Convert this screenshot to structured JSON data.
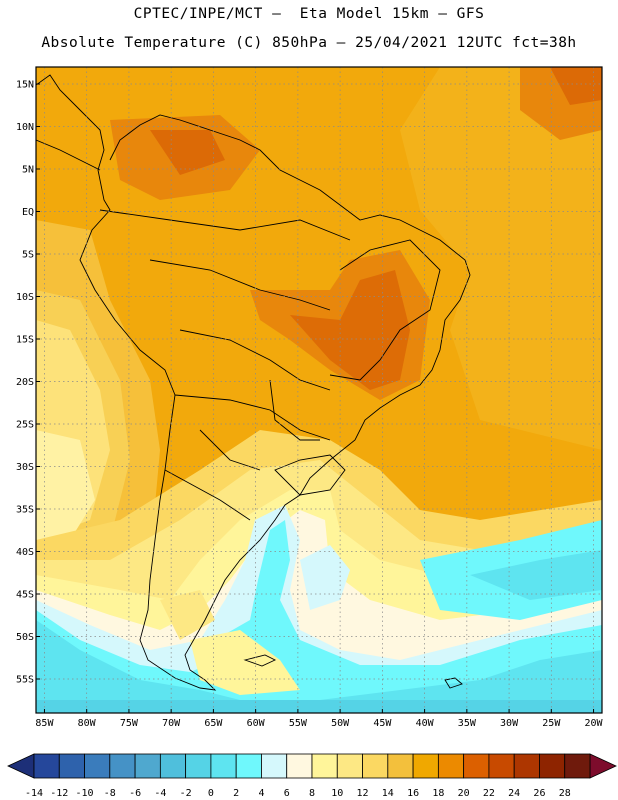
{
  "header": {
    "line1": "CPTEC/INPE/MCT –  Eta Model 15km – GFS",
    "line2": "Absolute Temperature (C) 850hPa – 25/04/2021 12UTC fct=38h"
  },
  "map": {
    "variable": "Absolute Temperature (C) 850hPa",
    "lon_range": [
      -86,
      -19
    ],
    "lat_range": [
      -59,
      17
    ],
    "lat_ticks": [
      "15N",
      "10N",
      "5N",
      "EQ",
      "5S",
      "10S",
      "15S",
      "20S",
      "25S",
      "30S",
      "35S",
      "40S",
      "45S",
      "50S",
      "55S"
    ],
    "lat_values": [
      15,
      10,
      5,
      0,
      -5,
      -10,
      -15,
      -20,
      -25,
      -30,
      -35,
      -40,
      -45,
      -50,
      -55
    ],
    "lon_ticks": [
      "85W",
      "80W",
      "75W",
      "70W",
      "65W",
      "60W",
      "55W",
      "50W",
      "45W",
      "40W",
      "35W",
      "30W",
      "25W",
      "20W"
    ],
    "lon_values": [
      -85,
      -80,
      -75,
      -70,
      -65,
      -60,
      -55,
      -50,
      -45,
      -40,
      -35,
      -30,
      -25,
      -20
    ]
  },
  "colorbar": {
    "labels": [
      "-14",
      "-12",
      "-10",
      "-8",
      "-6",
      "-4",
      "-2",
      "0",
      "2",
      "4",
      "6",
      "8",
      "10",
      "12",
      "14",
      "16",
      "18",
      "20",
      "22",
      "24",
      "26",
      "28"
    ],
    "colors": [
      "#25479b",
      "#2e62ac",
      "#3a7cbc",
      "#4592c6",
      "#4fa8cf",
      "#4fbfdc",
      "#55d3e6",
      "#5ee4f0",
      "#6ff8fc",
      "#d5f8fc",
      "#fff8e0",
      "#fff59a",
      "#fde884",
      "#fbd862",
      "#f3c03c",
      "#f0a800",
      "#ec8a00",
      "#dc6000",
      "#c84a00",
      "#ad3600",
      "#8e2400",
      "#6f1a0c"
    ],
    "under_color": "#1d2f78",
    "over_color": "#7d0c2c"
  }
}
